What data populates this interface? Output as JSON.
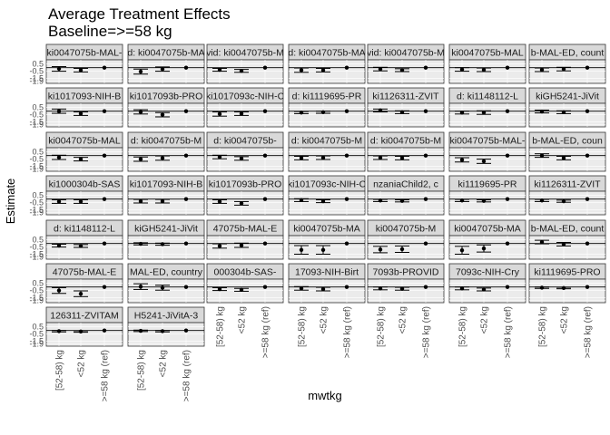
{
  "chart_data": {
    "type": "scatter",
    "variant": "faceted point estimates with confidence intervals",
    "title": "Average Treatment Effects",
    "subtitle": "Baseline=>=58 kg",
    "xlabel": "mwtkg",
    "ylabel": "Estimate",
    "categories": [
      "[52-58) kg",
      "<52 kg",
      ">=58 kg (ref)"
    ],
    "y_ticks": [
      "0.5",
      "-0.5",
      "-1.5",
      "-1.9"
    ],
    "ylim": [
      -2.2,
      1.1
    ],
    "reference_line": 0,
    "grid": true,
    "facets": [
      {
        "label": "ki0047075b-MAL-",
        "est": [
          -0.15,
          -0.35,
          0
        ],
        "lo": [
          -0.5,
          -0.6,
          0
        ],
        "hi": [
          0.15,
          -0.1,
          0
        ]
      },
      {
        "label": "d: ki0047075b-MA",
        "est": [
          -0.55,
          -0.2,
          0
        ],
        "lo": [
          -0.9,
          -0.5,
          0
        ],
        "hi": [
          -0.2,
          0.1,
          0
        ]
      },
      {
        "label": "vid: ki0047075b-M",
        "est": [
          -0.3,
          -0.45,
          0
        ],
        "lo": [
          -0.5,
          -0.65,
          0
        ],
        "hi": [
          -0.1,
          -0.25,
          0
        ]
      },
      {
        "label": "d: ki0047075b-MA",
        "est": [
          -0.35,
          -0.35,
          0
        ],
        "lo": [
          -0.65,
          -0.6,
          0
        ],
        "hi": [
          -0.05,
          -0.1,
          0
        ]
      },
      {
        "label": "vid: ki0047075b-M",
        "est": [
          -0.2,
          -0.35,
          0
        ],
        "lo": [
          -0.45,
          -0.55,
          0
        ],
        "hi": [
          0.05,
          -0.15,
          0
        ]
      },
      {
        "label": "ki0047075b-MAL",
        "est": [
          -0.25,
          -0.3,
          0
        ],
        "lo": [
          -0.5,
          -0.55,
          0
        ],
        "hi": [
          0.0,
          -0.05,
          0
        ]
      },
      {
        "label": "b-MAL-ED, count",
        "est": [
          -0.3,
          -0.2,
          0
        ],
        "lo": [
          -0.55,
          -0.45,
          0
        ],
        "hi": [
          -0.05,
          0.05,
          0
        ]
      },
      {
        "label": "ki1017093-NIH-B",
        "est": [
          0.0,
          -0.35,
          0
        ],
        "lo": [
          -0.3,
          -0.6,
          0
        ],
        "hi": [
          0.3,
          -0.1,
          0
        ]
      },
      {
        "label": "ki1017093b-PRO",
        "est": [
          -0.1,
          -0.5,
          0
        ],
        "lo": [
          -0.4,
          -0.8,
          0
        ],
        "hi": [
          0.2,
          -0.2,
          0
        ]
      },
      {
        "label": "ki1017093c-NIH-C",
        "est": [
          -0.4,
          -0.35,
          0
        ],
        "lo": [
          -0.7,
          -0.6,
          0
        ],
        "hi": [
          -0.1,
          -0.1,
          0
        ]
      },
      {
        "label": "d: ki1119695-PR",
        "est": [
          -0.2,
          -0.15,
          0
        ],
        "lo": [
          -0.35,
          -0.3,
          0
        ],
        "hi": [
          -0.05,
          0.0,
          0
        ]
      },
      {
        "label": "ki1126311-ZVIT",
        "est": [
          0.1,
          -0.15,
          0
        ],
        "lo": [
          -0.1,
          -0.35,
          0
        ],
        "hi": [
          0.3,
          0.05,
          0
        ]
      },
      {
        "label": "d: ki1148112-L",
        "est": [
          -0.2,
          -0.2,
          0
        ],
        "lo": [
          -0.4,
          -0.45,
          0
        ],
        "hi": [
          0.0,
          0.05,
          0
        ]
      },
      {
        "label": "kiGH5241-JiVit",
        "est": [
          -0.05,
          -0.15,
          0
        ],
        "lo": [
          -0.25,
          -0.35,
          0
        ],
        "hi": [
          0.15,
          0.05,
          0
        ]
      },
      {
        "label": "ki0047075b-MAL",
        "est": [
          -0.25,
          -0.5,
          0
        ],
        "lo": [
          -0.55,
          -0.75,
          0
        ],
        "hi": [
          0.05,
          -0.25,
          0
        ]
      },
      {
        "label": "d: ki0047075b-M",
        "est": [
          -0.5,
          -0.35,
          0
        ],
        "lo": [
          -0.8,
          -0.65,
          0
        ],
        "hi": [
          -0.2,
          -0.05,
          0
        ]
      },
      {
        "label": "d: ki0047075b-",
        "est": [
          -0.2,
          -0.4,
          0
        ],
        "lo": [
          -0.45,
          -0.65,
          0
        ],
        "hi": [
          0.05,
          -0.15,
          0
        ]
      },
      {
        "label": "d: ki0047075b-M",
        "est": [
          -0.35,
          -0.3,
          0
        ],
        "lo": [
          -0.6,
          -0.55,
          0
        ],
        "hi": [
          -0.1,
          -0.05,
          0
        ]
      },
      {
        "label": "d: ki0047075b-M",
        "est": [
          -0.3,
          -0.35,
          0
        ],
        "lo": [
          -0.55,
          -0.6,
          0
        ],
        "hi": [
          -0.05,
          -0.1,
          0
        ]
      },
      {
        "label": "ki0047075b-MAL-",
        "est": [
          -0.6,
          -0.8,
          0
        ],
        "lo": [
          -0.9,
          -1.1,
          0
        ],
        "hi": [
          -0.3,
          -0.5,
          0
        ]
      },
      {
        "label": "b-MAL-ED, coun",
        "est": [
          0.0,
          -0.35,
          0
        ],
        "lo": [
          -0.25,
          -0.6,
          0
        ],
        "hi": [
          0.25,
          -0.1,
          0
        ]
      },
      {
        "label": "ki1000304b-SAS",
        "est": [
          -0.35,
          -0.35,
          0
        ],
        "lo": [
          -0.6,
          -0.6,
          0
        ],
        "hi": [
          -0.1,
          -0.1,
          0
        ]
      },
      {
        "label": "ki1017093-NIH-B",
        "est": [
          -0.3,
          -0.3,
          0
        ],
        "lo": [
          -0.55,
          -0.55,
          0
        ],
        "hi": [
          -0.05,
          -0.05,
          0
        ]
      },
      {
        "label": "ki1017093b-PRO",
        "est": [
          -0.35,
          -0.6,
          0
        ],
        "lo": [
          -0.6,
          -0.85,
          0
        ],
        "hi": [
          -0.1,
          -0.35,
          0
        ]
      },
      {
        "label": "ki1017093c-NIH-C",
        "est": [
          -0.15,
          -0.3,
          0
        ],
        "lo": [
          -0.35,
          -0.5,
          0
        ],
        "hi": [
          0.05,
          -0.1,
          0
        ]
      },
      {
        "label": "nzaniaChild2, c",
        "est": [
          -0.2,
          -0.25,
          0
        ],
        "lo": [
          -0.35,
          -0.4,
          0
        ],
        "hi": [
          -0.05,
          -0.1,
          0
        ]
      },
      {
        "label": "ki1119695-PR",
        "est": [
          -0.2,
          -0.25,
          0
        ],
        "lo": [
          -0.35,
          -0.4,
          0
        ],
        "hi": [
          -0.05,
          -0.1,
          0
        ]
      },
      {
        "label": "ki1126311-ZVIT",
        "est": [
          -0.2,
          -0.3,
          0
        ],
        "lo": [
          -0.35,
          -0.45,
          0
        ],
        "hi": [
          -0.05,
          -0.15,
          0
        ]
      },
      {
        "label": "d: ki1148112-L",
        "est": [
          -0.3,
          -0.35,
          0
        ],
        "lo": [
          -0.5,
          -0.55,
          0
        ],
        "hi": [
          -0.1,
          -0.15,
          0
        ]
      },
      {
        "label": "kiGH5241-JiVit",
        "est": [
          -0.05,
          -0.1,
          0
        ],
        "lo": [
          -0.2,
          -0.25,
          0
        ],
        "hi": [
          0.1,
          0.05,
          0
        ]
      },
      {
        "label": "47075b-MAL-E",
        "est": [
          -0.35,
          -0.25,
          0
        ],
        "lo": [
          -0.65,
          -0.55,
          0
        ],
        "hi": [
          -0.05,
          0.05,
          0
        ]
      },
      {
        "label": "ki0047075b-MA",
        "est": [
          -0.9,
          -0.9,
          0
        ],
        "lo": [
          -1.5,
          -1.5,
          0
        ],
        "hi": [
          -0.3,
          -0.3,
          0
        ]
      },
      {
        "label": "ki0047075b-M",
        "est": [
          -0.85,
          -0.8,
          0
        ],
        "lo": [
          -1.3,
          -1.25,
          0
        ],
        "hi": [
          -0.4,
          -0.35,
          0
        ]
      },
      {
        "label": "ki0047075b-MA",
        "est": [
          -0.95,
          -0.7,
          0
        ],
        "lo": [
          -1.5,
          -1.2,
          0
        ],
        "hi": [
          -0.4,
          -0.2,
          0
        ]
      },
      {
        "label": "b-MAL-ED, count",
        "est": [
          0.2,
          -0.1,
          0
        ],
        "lo": [
          -0.05,
          -0.35,
          0
        ],
        "hi": [
          0.45,
          0.15,
          0
        ]
      },
      {
        "label": "47075b-MAL-E",
        "est": [
          -0.5,
          -0.95,
          0
        ],
        "lo": [
          -0.9,
          -1.35,
          0
        ],
        "hi": [
          -0.1,
          -0.55,
          0
        ]
      },
      {
        "label": "MAL-ED, country",
        "est": [
          0.05,
          -0.1,
          0
        ],
        "lo": [
          -0.35,
          -0.45,
          0
        ],
        "hi": [
          0.45,
          0.25,
          0
        ]
      },
      {
        "label": "000304b-SAS-",
        "est": [
          -0.3,
          -0.4,
          0
        ],
        "lo": [
          -0.5,
          -0.6,
          0
        ],
        "hi": [
          -0.1,
          -0.2,
          0
        ]
      },
      {
        "label": "17093-NIH-Birt",
        "est": [
          -0.2,
          -0.3,
          0
        ],
        "lo": [
          -0.45,
          -0.55,
          0
        ],
        "hi": [
          0.05,
          -0.05,
          0
        ]
      },
      {
        "label": "7093b-PROVID",
        "est": [
          -0.2,
          -0.25,
          0
        ],
        "lo": [
          -0.4,
          -0.45,
          0
        ],
        "hi": [
          0.0,
          -0.05,
          0
        ]
      },
      {
        "label": "7093c-NIH-Cry",
        "est": [
          -0.2,
          -0.35,
          0
        ],
        "lo": [
          -0.4,
          -0.55,
          0
        ],
        "hi": [
          0.0,
          -0.15,
          0
        ]
      },
      {
        "label": "ki1119695-PRO",
        "est": [
          -0.1,
          -0.15,
          0
        ],
        "lo": [
          -0.2,
          -0.25,
          0
        ],
        "hi": [
          0.0,
          -0.05,
          0
        ]
      },
      {
        "label": "126311-ZVITAM",
        "est": [
          -0.1,
          -0.15,
          0
        ],
        "lo": [
          -0.2,
          -0.25,
          0
        ],
        "hi": [
          0.0,
          -0.05,
          0
        ]
      },
      {
        "label": "H5241-JiVitA-3",
        "est": [
          -0.05,
          -0.1,
          0
        ],
        "lo": [
          -0.15,
          -0.2,
          0
        ],
        "hi": [
          0.05,
          0.0,
          0
        ]
      }
    ]
  }
}
